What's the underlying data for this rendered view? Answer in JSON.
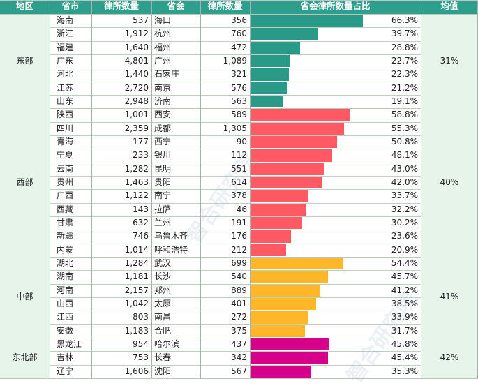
{
  "chart_data": {
    "type": "table",
    "columns": [
      "地区",
      "省市",
      "律所数量",
      "省会",
      "律所数量",
      "省会律所数量占比",
      "均值"
    ],
    "regions": [
      {
        "name": "东部",
        "avg": "31%",
        "color": "#2a9a88",
        "rows": [
          {
            "province": "海南",
            "count": "537",
            "capital": "海口",
            "cap_count": "356",
            "pct_label": "66.3%",
            "pct": 66.3
          },
          {
            "province": "浙江",
            "count": "1,912",
            "capital": "杭州",
            "cap_count": "760",
            "pct_label": "39.7%",
            "pct": 39.7
          },
          {
            "province": "福建",
            "count": "1,640",
            "capital": "福州",
            "cap_count": "472",
            "pct_label": "28.8%",
            "pct": 28.8
          },
          {
            "province": "广东",
            "count": "4,801",
            "capital": "广州",
            "cap_count": "1,089",
            "pct_label": "22.7%",
            "pct": 22.7
          },
          {
            "province": "河北",
            "count": "1,440",
            "capital": "石家庄",
            "cap_count": "321",
            "pct_label": "22.3%",
            "pct": 22.3
          },
          {
            "province": "江苏",
            "count": "2,720",
            "capital": "南京",
            "cap_count": "576",
            "pct_label": "21.2%",
            "pct": 21.2
          },
          {
            "province": "山东",
            "count": "2,948",
            "capital": "济南",
            "cap_count": "563",
            "pct_label": "19.1%",
            "pct": 19.1
          }
        ]
      },
      {
        "name": "西部",
        "avg": "40%",
        "color": "#ff5a63",
        "rows": [
          {
            "province": "陕西",
            "count": "1,001",
            "capital": "西安",
            "cap_count": "589",
            "pct_label": "58.8%",
            "pct": 58.8
          },
          {
            "province": "四川",
            "count": "2,359",
            "capital": "成都",
            "cap_count": "1,305",
            "pct_label": "55.3%",
            "pct": 55.3
          },
          {
            "province": "青海",
            "count": "177",
            "capital": "西宁",
            "cap_count": "90",
            "pct_label": "50.8%",
            "pct": 50.8
          },
          {
            "province": "宁夏",
            "count": "233",
            "capital": "银川",
            "cap_count": "112",
            "pct_label": "48.1%",
            "pct": 48.1
          },
          {
            "province": "云南",
            "count": "1,282",
            "capital": "昆明",
            "cap_count": "551",
            "pct_label": "43.0%",
            "pct": 43.0
          },
          {
            "province": "贵州",
            "count": "1,463",
            "capital": "贵阳",
            "cap_count": "614",
            "pct_label": "42.0%",
            "pct": 42.0
          },
          {
            "province": "广西",
            "count": "1,122",
            "capital": "南宁",
            "cap_count": "378",
            "pct_label": "33.7%",
            "pct": 33.7
          },
          {
            "province": "西藏",
            "count": "143",
            "capital": "拉萨",
            "cap_count": "46",
            "pct_label": "32.2%",
            "pct": 32.2
          },
          {
            "province": "甘肃",
            "count": "632",
            "capital": "兰州",
            "cap_count": "191",
            "pct_label": "30.2%",
            "pct": 30.2
          },
          {
            "province": "新疆",
            "count": "746",
            "capital": "乌鲁木齐",
            "cap_count": "176",
            "pct_label": "23.6%",
            "pct": 23.6
          },
          {
            "province": "内蒙",
            "count": "1,014",
            "capital": "呼和浩特",
            "cap_count": "212",
            "pct_label": "20.9%",
            "pct": 20.9
          }
        ]
      },
      {
        "name": "中部",
        "avg": "41%",
        "color": "#ffb728",
        "rows": [
          {
            "province": "湖北",
            "count": "1,284",
            "capital": "武汉",
            "cap_count": "699",
            "pct_label": "54.4%",
            "pct": 54.4
          },
          {
            "province": "湖南",
            "count": "1,181",
            "capital": "长沙",
            "cap_count": "540",
            "pct_label": "45.7%",
            "pct": 45.7
          },
          {
            "province": "河南",
            "count": "2,157",
            "capital": "郑州",
            "cap_count": "889",
            "pct_label": "41.2%",
            "pct": 41.2
          },
          {
            "province": "山西",
            "count": "1,042",
            "capital": "太原",
            "cap_count": "401",
            "pct_label": "38.5%",
            "pct": 38.5
          },
          {
            "province": "江西",
            "count": "803",
            "capital": "南昌",
            "cap_count": "272",
            "pct_label": "33.9%",
            "pct": 33.9
          },
          {
            "province": "安徽",
            "count": "1,183",
            "capital": "合肥",
            "cap_count": "375",
            "pct_label": "31.7%",
            "pct": 31.7
          }
        ]
      },
      {
        "name": "东北部",
        "avg": "42%",
        "color": "#d6008a",
        "rows": [
          {
            "province": "黑龙江",
            "count": "954",
            "capital": "哈尔滨",
            "cap_count": "437",
            "pct_label": "45.8%",
            "pct": 45.8
          },
          {
            "province": "吉林",
            "count": "753",
            "capital": "长春",
            "cap_count": "342",
            "pct_label": "45.4%",
            "pct": 45.4
          },
          {
            "province": "辽宁",
            "count": "1,606",
            "capital": "沈阳",
            "cap_count": "567",
            "pct_label": "35.3%",
            "pct": 35.3
          }
        ]
      }
    ]
  },
  "watermark": [
    "智合研究院",
    "智合研究院"
  ]
}
